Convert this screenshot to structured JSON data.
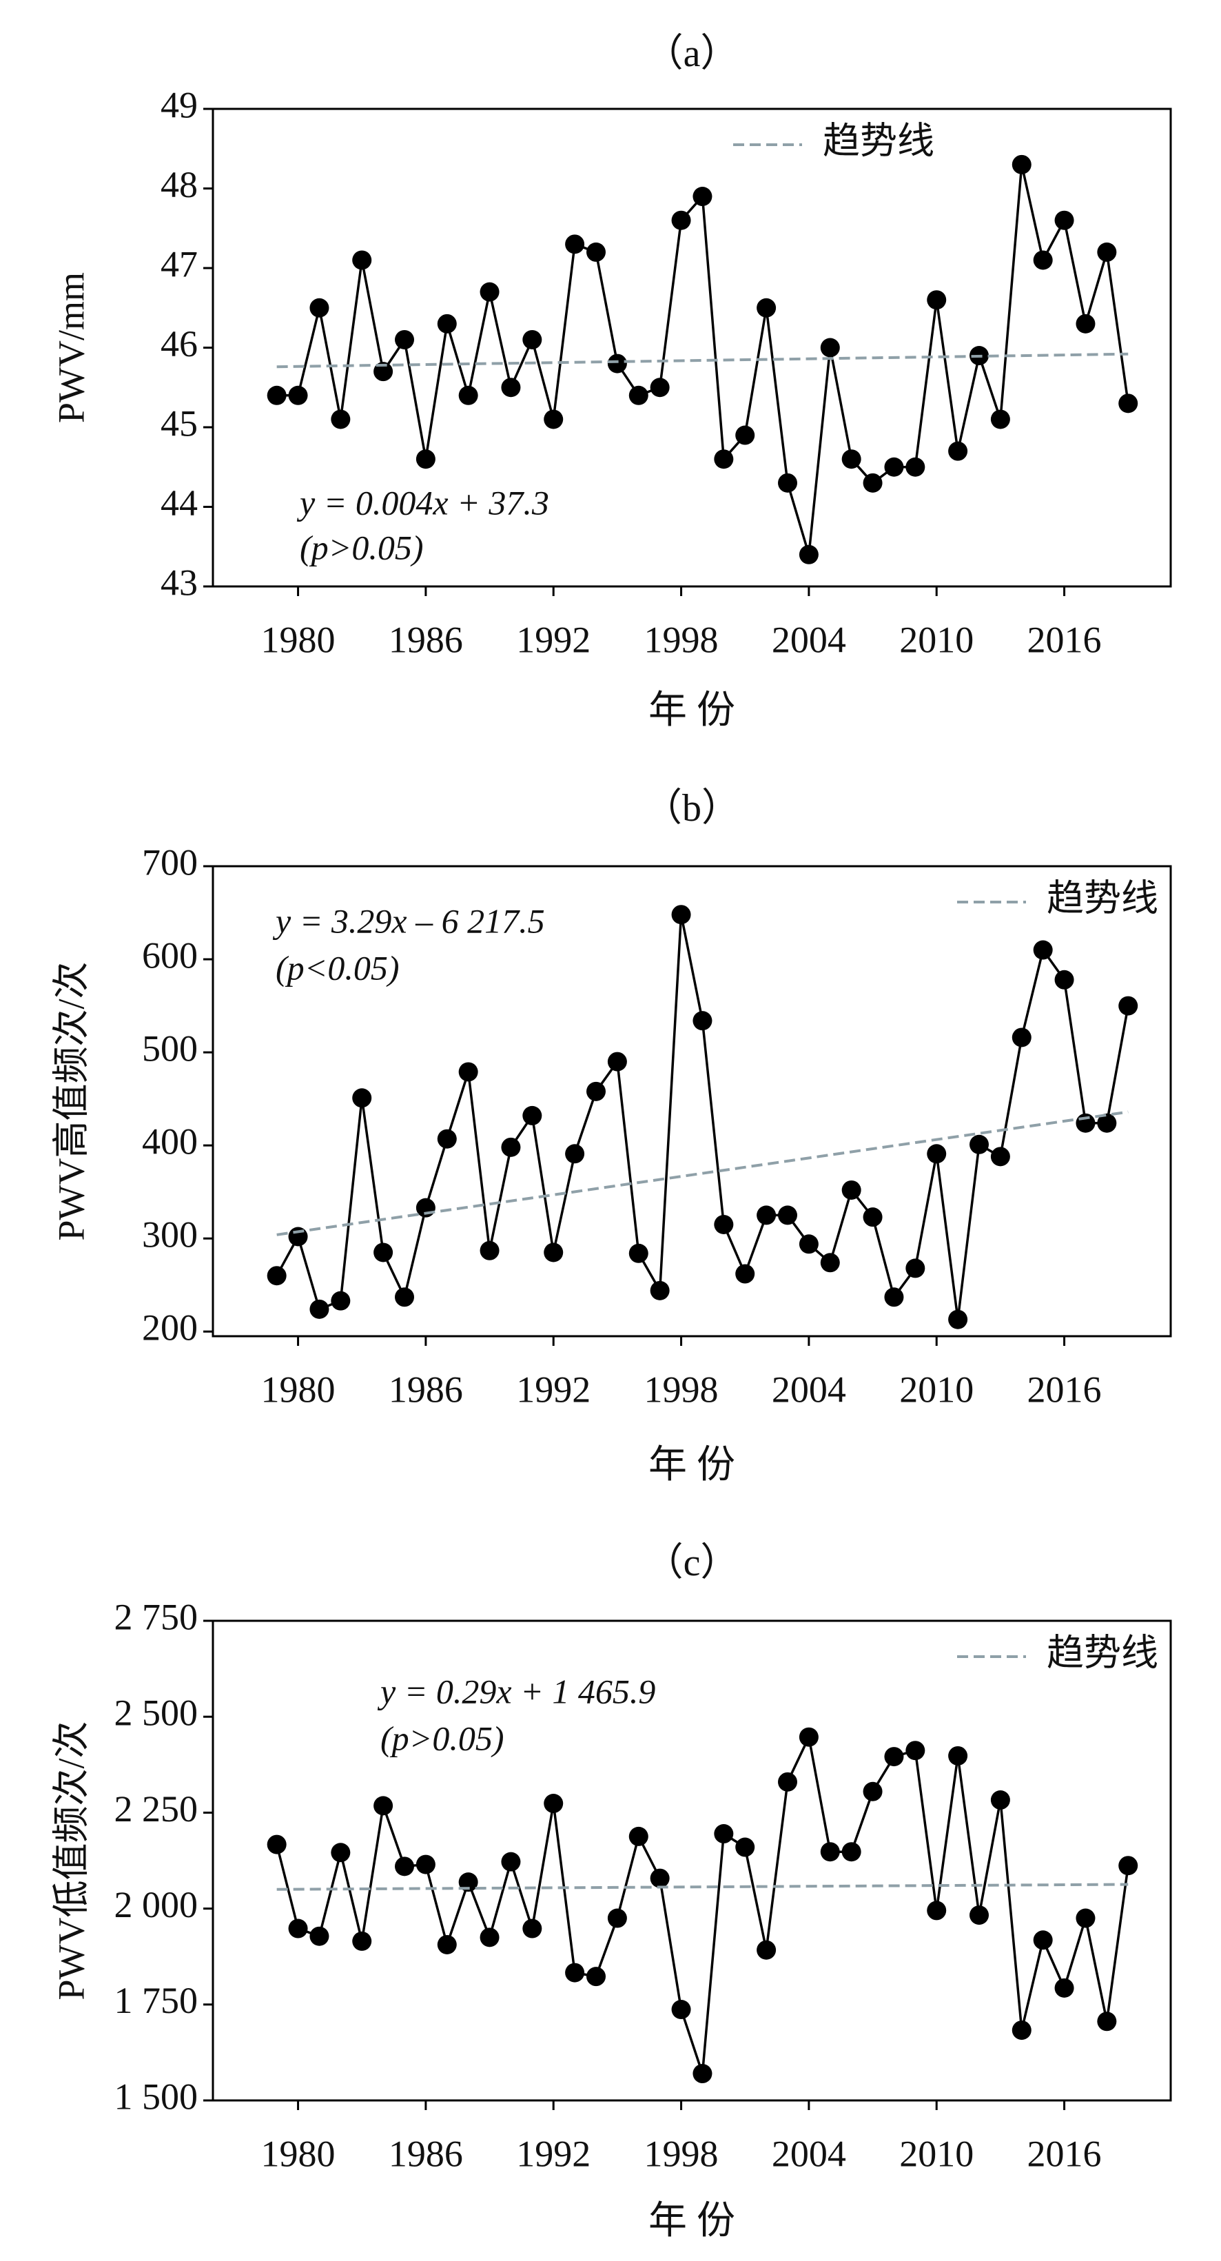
{
  "chart_data": [
    {
      "type": "line",
      "title": "（a）",
      "xlabel": "年 份",
      "ylabel": "PWV/mm",
      "x": [
        1979,
        1980,
        1981,
        1982,
        1983,
        1984,
        1985,
        1986,
        1987,
        1988,
        1989,
        1990,
        1991,
        1992,
        1993,
        1994,
        1995,
        1996,
        1997,
        1998,
        1999,
        2000,
        2001,
        2002,
        2003,
        2004,
        2005,
        2006,
        2007,
        2008,
        2009,
        2010,
        2011,
        2012,
        2013,
        2014,
        2015,
        2016,
        2017,
        2018,
        2019
      ],
      "series": [
        {
          "color": "#000000",
          "values": [
            45.4,
            45.4,
            46.5,
            45.1,
            47.1,
            45.7,
            46.1,
            44.6,
            46.3,
            45.4,
            46.7,
            45.5,
            46.1,
            45.1,
            47.3,
            47.2,
            45.8,
            45.4,
            45.5,
            47.6,
            47.9,
            44.6,
            44.9,
            46.5,
            44.3,
            43.4,
            46.0,
            44.6,
            44.3,
            44.5,
            44.5,
            46.6,
            44.7,
            45.9,
            45.1,
            48.3,
            47.1,
            47.6,
            46.3,
            47.2,
            45.3
          ]
        },
        {
          "name": "趋势线",
          "color": "#8fa0a8",
          "x": [
            1979,
            2019
          ],
          "values": [
            45.76,
            45.92
          ]
        }
      ],
      "annotations": [
        "y = 0.004x + 37.3",
        "(p>0.05)"
      ],
      "xlim": [
        1976,
        2021
      ],
      "xticks": [
        1980,
        1986,
        1992,
        1998,
        2004,
        2010,
        2016
      ],
      "ylim": [
        43,
        49
      ],
      "yticks": [
        43,
        44,
        45,
        46,
        47,
        48,
        49
      ],
      "legend": "upper center"
    },
    {
      "type": "line",
      "title": "（b）",
      "xlabel": "年 份",
      "ylabel": "PWV高值频次/次",
      "x": [
        1979,
        1980,
        1981,
        1982,
        1983,
        1984,
        1985,
        1986,
        1987,
        1988,
        1989,
        1990,
        1991,
        1992,
        1993,
        1994,
        1995,
        1996,
        1997,
        1998,
        1999,
        2000,
        2001,
        2002,
        2003,
        2004,
        2005,
        2006,
        2007,
        2008,
        2009,
        2010,
        2011,
        2012,
        2013,
        2014,
        2015,
        2016,
        2017,
        2018,
        2019
      ],
      "series": [
        {
          "color": "#000000",
          "values": [
            260,
            302,
            224,
            233,
            451,
            285,
            237,
            333,
            407,
            479,
            287,
            398,
            432,
            285,
            391,
            458,
            490,
            284,
            244,
            648,
            534,
            315,
            262,
            325,
            325,
            294,
            274,
            352,
            323,
            237,
            268,
            391,
            213,
            401,
            388,
            516,
            610,
            578,
            424,
            424,
            550
          ]
        },
        {
          "name": "趋势线",
          "color": "#8fa0a8",
          "x": [
            1979,
            2019
          ],
          "values": [
            304,
            436
          ]
        }
      ],
      "annotations": [
        "y = 3.29x – 6 217.5",
        "(p<0.05)"
      ],
      "xlim": [
        1976,
        2021
      ],
      "xticks": [
        1980,
        1986,
        1992,
        1998,
        2004,
        2010,
        2016
      ],
      "ylim": [
        195,
        700
      ],
      "yticks": [
        200,
        300,
        400,
        500,
        600,
        700
      ],
      "legend": "upper right"
    },
    {
      "type": "line",
      "title": "（c）",
      "xlabel": "年 份",
      "ylabel": "PWV低值频次/次",
      "x": [
        1979,
        1980,
        1981,
        1982,
        1983,
        1984,
        1985,
        1986,
        1987,
        1988,
        1989,
        1990,
        1991,
        1992,
        1993,
        1994,
        1995,
        1996,
        1997,
        1998,
        1999,
        2000,
        2001,
        2002,
        2003,
        2004,
        2005,
        2006,
        2007,
        2008,
        2009,
        2010,
        2011,
        2012,
        2013,
        2014,
        2015,
        2016,
        2017,
        2018,
        2019
      ],
      "series": [
        {
          "color": "#000000",
          "values": [
            2167,
            1948,
            1928,
            2146,
            1915,
            2268,
            2110,
            2115,
            1906,
            2069,
            1925,
            2122,
            1948,
            2274,
            1833,
            1823,
            1975,
            2188,
            2079,
            1737,
            1570,
            2195,
            2160,
            1892,
            2330,
            2447,
            2148,
            2148,
            2305,
            2396,
            2412,
            1995,
            2398,
            1983,
            2283,
            1683,
            1918,
            1793,
            1975,
            1706,
            2112
          ]
        },
        {
          "name": "趋势线",
          "color": "#8fa0a8",
          "x": [
            1979,
            2019
          ],
          "values": [
            2050,
            2063
          ]
        }
      ],
      "annotations": [
        "y = 0.29x + 1 465.9",
        "(p>0.05)"
      ],
      "xlim": [
        1976,
        2021
      ],
      "xticks": [
        1980,
        1986,
        1992,
        1998,
        2004,
        2010,
        2016
      ],
      "ylim": [
        1500,
        2750
      ],
      "yticks": [
        {
          "value": 1500,
          "label": "1 500"
        },
        {
          "value": 1750,
          "label": "1 750"
        },
        {
          "value": 2000,
          "label": "2 000"
        },
        {
          "value": 2250,
          "label": "2 250"
        },
        {
          "value": 2500,
          "label": "2 500"
        },
        {
          "value": 2750,
          "label": "2 750"
        }
      ],
      "legend": "upper right"
    }
  ]
}
